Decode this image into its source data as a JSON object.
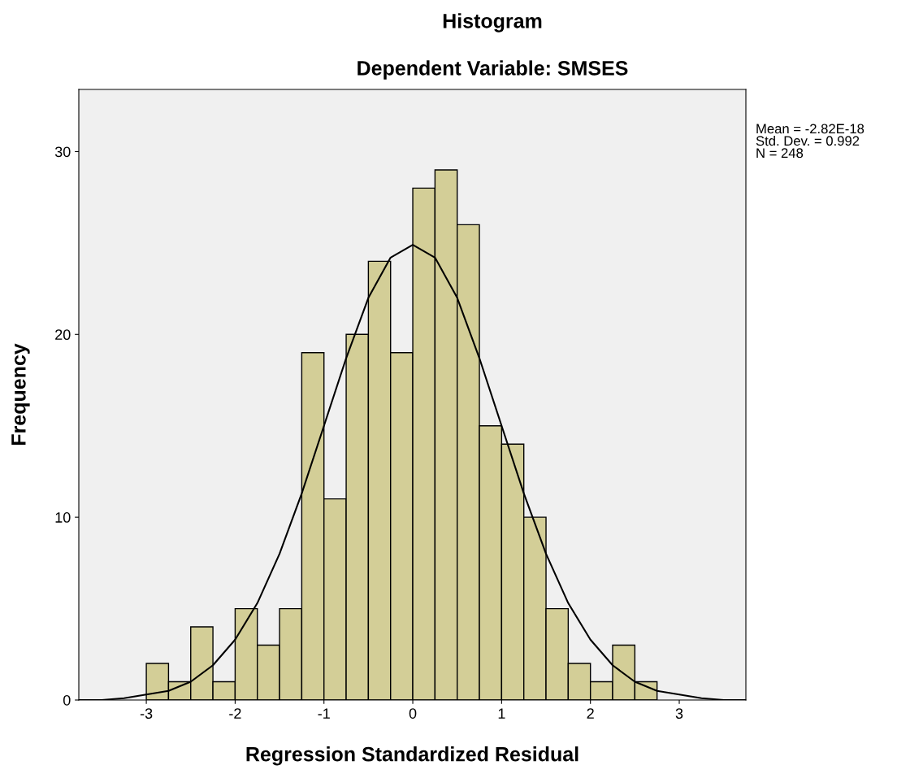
{
  "chart_data": {
    "type": "histogram",
    "title": "Histogram",
    "subtitle": "Dependent Variable: SMSES",
    "xlabel": "Regression Standardized Residual",
    "ylabel": "Frequency",
    "bins": [
      -3,
      -2.75,
      -2.5,
      -2.25,
      -2,
      -1.75,
      -1.5,
      -1.25,
      -1,
      -0.75,
      -0.5,
      -0.25,
      0,
      0.25,
      0.5,
      0.75,
      1,
      1.25,
      1.5,
      1.75,
      2,
      2.25,
      2.5,
      2.75
    ],
    "values": [
      2,
      1,
      4,
      1,
      5,
      3,
      5,
      19,
      11,
      20,
      24,
      19,
      28,
      29,
      26,
      15,
      14,
      10,
      5,
      2,
      1,
      3,
      1
    ],
    "color": "#d3ce97",
    "series": [
      {
        "type": "line",
        "color": "#000000",
        "x": [
          -3.75,
          -3.5,
          -3.25,
          -3,
          -2.75,
          -2.5,
          -2.25,
          -2,
          -1.75,
          -1.5,
          -1.25,
          -1,
          -0.75,
          -0.5,
          -0.25,
          0,
          0.25,
          0.5,
          0.75,
          1,
          1.25,
          1.5,
          1.75,
          2,
          2.25,
          2.5,
          2.75,
          3,
          3.25,
          3.5,
          3.75
        ],
        "values": [
          0.0,
          0.0,
          0.1,
          0.3,
          0.5,
          1.0,
          1.9,
          3.3,
          5.3,
          8.0,
          11.3,
          15.0,
          18.7,
          22.0,
          24.2,
          24.9,
          24.2,
          22.0,
          18.7,
          15.0,
          11.3,
          8.0,
          5.3,
          3.3,
          1.9,
          1.0,
          0.5,
          0.3,
          0.1,
          0.0,
          0.0
        ]
      }
    ],
    "xlim": [
      -3.76,
      3.75
    ],
    "ylim": [
      0,
      33.4
    ],
    "xticks": [
      -3,
      -2,
      -1,
      0,
      1,
      2,
      3
    ],
    "yticks": [
      0,
      10,
      20,
      30
    ],
    "grid": false,
    "legend": false,
    "marker": "none",
    "line_style": "solid",
    "annotations": [
      "Mean = -2.82E-18\nStd. Dev. = 0.992\nN = 248"
    ]
  }
}
